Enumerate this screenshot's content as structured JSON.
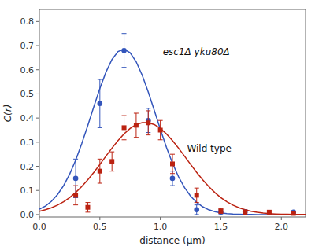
{
  "chart_data": {
    "type": "scatter",
    "xlabel": "distance (μm)",
    "ylabel": "C(r)",
    "xlim": [
      0,
      2.2
    ],
    "ylim": [
      -0.01,
      0.85
    ],
    "xticks": [
      {
        "value": 0,
        "label": "0.0"
      },
      0.5,
      {
        "value": 1.0,
        "label": "1.0"
      },
      1.5,
      {
        "value": 2.0,
        "label": "2.0"
      }
    ],
    "yticks": [
      {
        "value": 0.0,
        "label": "0.0"
      },
      0.1,
      0.2,
      0.3,
      0.4,
      0.5,
      0.6,
      0.7,
      0.8
    ],
    "grid": false,
    "series": [
      {
        "type": "line",
        "color": "#3355bb",
        "x": [
          0,
          0.05,
          0.1,
          0.15,
          0.2,
          0.25,
          0.3,
          0.35,
          0.4,
          0.45,
          0.5,
          0.55,
          0.6,
          0.65,
          0.7,
          0.75,
          0.8,
          0.85,
          0.9,
          0.95,
          1.0,
          1.05,
          1.1,
          1.15,
          1.2,
          1.25,
          1.3,
          1.35,
          1.4,
          1.45,
          1.5,
          1.55,
          1.6,
          1.65,
          1.7,
          1.75,
          1.8,
          1.85,
          1.9,
          1.95,
          2.0,
          2.05,
          2.1,
          2.15,
          2.2
        ],
        "values": [
          0.022,
          0.0354,
          0.0551,
          0.0827,
          0.1197,
          0.1673,
          0.2256,
          0.2935,
          0.3686,
          0.4468,
          0.5225,
          0.5898,
          0.6424,
          0.6752,
          0.6849,
          0.6704,
          0.6333,
          0.5773,
          0.5078,
          0.4311,
          0.3532,
          0.2792,
          0.213,
          0.1569,
          0.1115,
          0.0764,
          0.0506,
          0.0323,
          0.0199,
          0.0118,
          0.0068,
          0.0038,
          0.002,
          0.001,
          0.0005,
          0.0002,
          0.0001,
          0.0001,
          0,
          0,
          0,
          0,
          0,
          0,
          0
        ]
      },
      {
        "type": "line",
        "color": "#bb2211",
        "x": [
          0,
          0.05,
          0.1,
          0.15,
          0.2,
          0.25,
          0.3,
          0.35,
          0.4,
          0.45,
          0.5,
          0.55,
          0.6,
          0.65,
          0.7,
          0.75,
          0.8,
          0.85,
          0.9,
          0.95,
          1.0,
          1.05,
          1.1,
          1.15,
          1.2,
          1.25,
          1.3,
          1.35,
          1.4,
          1.45,
          1.5,
          1.55,
          1.6,
          1.65,
          1.7,
          1.75,
          1.8,
          1.85,
          1.9,
          1.95,
          2.0,
          2.05,
          2.1,
          2.15,
          2.2
        ],
        "values": [
          0.0139,
          0.0201,
          0.0284,
          0.0393,
          0.0532,
          0.0705,
          0.0914,
          0.116,
          0.144,
          0.1749,
          0.2079,
          0.2419,
          0.2754,
          0.3069,
          0.3346,
          0.357,
          0.3728,
          0.381,
          0.381,
          0.3728,
          0.357,
          0.3346,
          0.3069,
          0.2754,
          0.2419,
          0.2079,
          0.1749,
          0.144,
          0.116,
          0.0914,
          0.0705,
          0.0532,
          0.0393,
          0.0284,
          0.0201,
          0.0139,
          0.0094,
          0.0063,
          0.0041,
          0.0026,
          0.0016,
          0.001,
          0.0006,
          0.0003,
          0.0002
        ]
      },
      {
        "type": "scatter",
        "marker": "circle",
        "color": "#3355bb",
        "x": [
          0.3,
          0.5,
          0.7,
          0.9,
          1.1,
          1.3,
          1.5,
          1.7,
          2.1
        ],
        "values": [
          0.15,
          0.46,
          0.68,
          0.39,
          0.15,
          0.02,
          0.01,
          0.01,
          0.01
        ],
        "errors": [
          0.08,
          0.1,
          0.07,
          0.05,
          0.03,
          0.02,
          0.01,
          0.01,
          0.005
        ]
      },
      {
        "type": "scatter",
        "marker": "square",
        "color": "#bb2211",
        "x": [
          0.3,
          0.4,
          0.5,
          0.6,
          0.7,
          0.8,
          0.9,
          1.0,
          1.1,
          1.3,
          1.5,
          1.7,
          1.9,
          2.1
        ],
        "values": [
          0.08,
          0.03,
          0.18,
          0.22,
          0.36,
          0.37,
          0.38,
          0.35,
          0.21,
          0.08,
          0.015,
          0.01,
          0.01,
          0.005
        ],
        "errors": [
          0.04,
          0.02,
          0.05,
          0.04,
          0.05,
          0.05,
          0.05,
          0.04,
          0.04,
          0.03,
          0.01,
          0.01,
          0.005,
          0.003
        ]
      }
    ],
    "annotations": [
      {
        "text": "esc1Δ yku80Δ",
        "x": 1.02,
        "y": 0.66
      },
      {
        "text": "Wild type",
        "x": 1.22,
        "y": 0.26
      }
    ]
  }
}
